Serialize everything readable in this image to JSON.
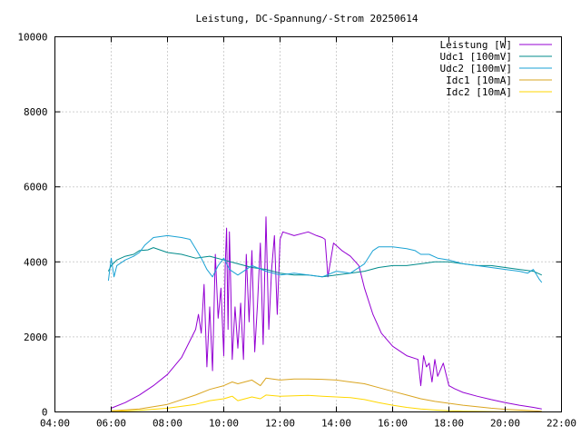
{
  "chart_data": {
    "type": "line",
    "title": "Leistung, DC-Spannung/-Strom 20250614",
    "xlabel": "",
    "ylabel": "",
    "x_unit": "time of day (hours)",
    "xlim": [
      4,
      22
    ],
    "ylim": [
      0,
      10000
    ],
    "grid": true,
    "legend_position": "top-right",
    "x_ticks": [
      {
        "value": 4,
        "label": "04:00"
      },
      {
        "value": 6,
        "label": "06:00"
      },
      {
        "value": 8,
        "label": "08:00"
      },
      {
        "value": 10,
        "label": "10:00"
      },
      {
        "value": 12,
        "label": "12:00"
      },
      {
        "value": 14,
        "label": "14:00"
      },
      {
        "value": 16,
        "label": "16:00"
      },
      {
        "value": 18,
        "label": "18:00"
      },
      {
        "value": 20,
        "label": "20:00"
      },
      {
        "value": 22,
        "label": "22:00"
      }
    ],
    "y_ticks": [
      {
        "value": 0,
        "label": "0"
      },
      {
        "value": 2000,
        "label": "2000"
      },
      {
        "value": 4000,
        "label": "4000"
      },
      {
        "value": 6000,
        "label": "6000"
      },
      {
        "value": 8000,
        "label": "8000"
      },
      {
        "value": 10000,
        "label": "10000"
      }
    ],
    "series": [
      {
        "name": "Leistung [W]",
        "color": "#9400d3",
        "x": [
          6.0,
          6.5,
          7.0,
          7.5,
          8.0,
          8.5,
          8.8,
          9.0,
          9.1,
          9.2,
          9.3,
          9.4,
          9.5,
          9.6,
          9.7,
          9.8,
          9.9,
          10.0,
          10.05,
          10.1,
          10.15,
          10.2,
          10.25,
          10.3,
          10.4,
          10.5,
          10.6,
          10.7,
          10.8,
          10.9,
          11.0,
          11.1,
          11.2,
          11.3,
          11.4,
          11.5,
          11.6,
          11.7,
          11.8,
          11.9,
          12.0,
          12.1,
          12.5,
          13.0,
          13.3,
          13.5,
          13.6,
          13.7,
          13.9,
          14.2,
          14.5,
          14.8,
          15.0,
          15.3,
          15.6,
          16.0,
          16.5,
          16.9,
          17.0,
          17.1,
          17.2,
          17.3,
          17.4,
          17.5,
          17.6,
          17.8,
          18.0,
          18.2,
          18.5,
          19.0,
          19.5,
          20.0,
          20.5,
          21.0,
          21.3
        ],
        "values": [
          100,
          250,
          450,
          700,
          1000,
          1450,
          1900,
          2200,
          2600,
          2100,
          3400,
          1200,
          2800,
          1100,
          4200,
          2500,
          3300,
          1500,
          3900,
          4900,
          2200,
          4800,
          3200,
          1400,
          2800,
          1700,
          2900,
          1400,
          4200,
          2400,
          4300,
          1600,
          2900,
          4500,
          1800,
          5200,
          2200,
          3800,
          4700,
          2600,
          4600,
          4800,
          4700,
          4800,
          4700,
          4650,
          4600,
          3600,
          4500,
          4300,
          4150,
          3900,
          3300,
          2600,
          2100,
          1750,
          1500,
          1400,
          700,
          1500,
          1200,
          1300,
          800,
          1400,
          950,
          1300,
          700,
          620,
          520,
          420,
          330,
          250,
          180,
          120,
          80
        ]
      },
      {
        "name": "Udc1 [100mV]",
        "color": "#008b8b",
        "x": [
          5.9,
          6.0,
          6.2,
          6.5,
          6.8,
          7.0,
          7.3,
          7.5,
          8.0,
          8.5,
          9.0,
          9.5,
          10.0,
          10.5,
          11.0,
          11.5,
          12.0,
          12.5,
          13.0,
          13.5,
          14.0,
          14.5,
          15.0,
          15.5,
          16.0,
          16.5,
          17.0,
          17.5,
          18.0,
          18.5,
          19.0,
          19.5,
          20.0,
          20.5,
          21.0,
          21.3
        ],
        "values": [
          3750,
          3900,
          4050,
          4150,
          4200,
          4300,
          4320,
          4380,
          4250,
          4200,
          4100,
          4150,
          4050,
          3950,
          3850,
          3800,
          3700,
          3650,
          3650,
          3600,
          3650,
          3700,
          3750,
          3850,
          3900,
          3900,
          3950,
          4000,
          4000,
          3950,
          3900,
          3900,
          3850,
          3800,
          3750,
          3650
        ]
      },
      {
        "name": "Udc2 [100mV]",
        "color": "#1aa2d4",
        "x": [
          5.9,
          6.0,
          6.1,
          6.2,
          6.5,
          6.8,
          7.0,
          7.2,
          7.5,
          8.0,
          8.5,
          8.8,
          9.0,
          9.2,
          9.4,
          9.6,
          9.8,
          10.0,
          10.2,
          10.5,
          11.0,
          11.5,
          12.0,
          12.5,
          13.0,
          13.5,
          14.0,
          14.5,
          15.0,
          15.3,
          15.5,
          16.0,
          16.5,
          16.8,
          17.0,
          17.3,
          17.6,
          18.0,
          18.5,
          19.0,
          19.5,
          20.0,
          20.5,
          20.8,
          21.0,
          21.2,
          21.3
        ],
        "values": [
          3500,
          4100,
          3600,
          3900,
          4050,
          4150,
          4250,
          4450,
          4650,
          4700,
          4650,
          4600,
          4350,
          4100,
          3800,
          3600,
          3900,
          4100,
          3800,
          3650,
          3900,
          3750,
          3650,
          3700,
          3650,
          3600,
          3750,
          3700,
          3950,
          4300,
          4400,
          4400,
          4350,
          4300,
          4200,
          4200,
          4100,
          4050,
          3950,
          3900,
          3850,
          3800,
          3750,
          3700,
          3800,
          3550,
          3450
        ]
      },
      {
        "name": "Idc1 [10mA]",
        "color": "#daa520",
        "x": [
          6.0,
          7.0,
          8.0,
          9.0,
          9.5,
          10.0,
          10.3,
          10.5,
          11.0,
          11.3,
          11.5,
          12.0,
          12.5,
          13.0,
          13.5,
          14.0,
          14.5,
          15.0,
          15.5,
          16.0,
          16.5,
          17.0,
          17.5,
          18.0,
          18.5,
          19.0,
          19.5,
          20.0,
          20.5,
          21.0,
          21.3
        ],
        "values": [
          30,
          80,
          200,
          450,
          600,
          700,
          800,
          750,
          850,
          700,
          900,
          850,
          880,
          880,
          870,
          850,
          800,
          750,
          650,
          550,
          450,
          350,
          280,
          230,
          180,
          140,
          100,
          70,
          50,
          30,
          20
        ]
      },
      {
        "name": "Idc2 [10mA]",
        "color": "#ffd700",
        "x": [
          6.0,
          7.0,
          8.0,
          9.0,
          9.5,
          10.0,
          10.3,
          10.5,
          11.0,
          11.3,
          11.5,
          12.0,
          12.5,
          13.0,
          13.5,
          14.0,
          14.5,
          15.0,
          15.5,
          16.0,
          16.5,
          17.0,
          17.5,
          18.0,
          18.5,
          19.0,
          19.5,
          20.0,
          20.5,
          21.0
        ],
        "values": [
          15,
          40,
          100,
          200,
          300,
          350,
          420,
          300,
          400,
          350,
          450,
          420,
          430,
          440,
          420,
          400,
          380,
          330,
          250,
          180,
          120,
          80,
          50,
          30,
          20,
          15,
          10,
          8,
          5,
          3
        ]
      }
    ]
  }
}
